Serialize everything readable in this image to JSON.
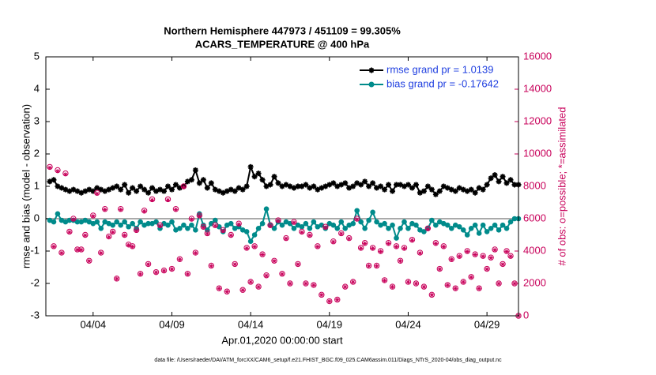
{
  "chart_data": {
    "type": "line",
    "title": "Northern Hemisphere 447973 / 451109 = 99.305%",
    "subtitle": "ACARS_TEMPERATURE @ 400 hPa",
    "xlabel": "Apr.01,2020 00:00:00 start",
    "ylabel": "rmse and bias (model - observation)",
    "y2label": "# of obs: o=possible; *=assimilated",
    "footer": "data file: /Users/raeder/DAI/ATM_forcXX/CAM6_setup/f.e21.FHIST_BGC.f09_025.CAM6assim.011/Diags_NTrS_2020-04/obs_diag_output.nc",
    "xlim": [
      0,
      30
    ],
    "xticks": [
      {
        "value": 3,
        "label": "04/04"
      },
      {
        "value": 8,
        "label": "04/09"
      },
      {
        "value": 13,
        "label": "04/14"
      },
      {
        "value": 18,
        "label": "04/19"
      },
      {
        "value": 23,
        "label": "04/24"
      },
      {
        "value": 28,
        "label": "04/29"
      }
    ],
    "ylim": [
      -3,
      5
    ],
    "yticks": [
      -3,
      -2,
      -1,
      0,
      1,
      2,
      3,
      4,
      5
    ],
    "y2lim": [
      0,
      16000
    ],
    "y2ticks": [
      0,
      2000,
      4000,
      6000,
      8000,
      10000,
      12000,
      14000,
      16000
    ],
    "y2color": "#c8005a",
    "zero_line_color": "#aaaaaa",
    "legend": "upper right",
    "x": [
      0.25,
      0.5,
      0.75,
      1,
      1.25,
      1.5,
      1.75,
      2,
      2.25,
      2.5,
      2.75,
      3,
      3.25,
      3.5,
      3.75,
      4,
      4.25,
      4.5,
      4.75,
      5,
      5.25,
      5.5,
      5.75,
      6,
      6.25,
      6.5,
      6.75,
      7,
      7.25,
      7.5,
      7.75,
      8,
      8.25,
      8.5,
      8.75,
      9,
      9.25,
      9.5,
      9.75,
      10,
      10.25,
      10.5,
      10.75,
      11,
      11.25,
      11.5,
      11.75,
      12,
      12.25,
      12.5,
      12.75,
      13,
      13.25,
      13.5,
      13.75,
      14,
      14.25,
      14.5,
      14.75,
      15,
      15.25,
      15.5,
      15.75,
      16,
      16.25,
      16.5,
      16.75,
      17,
      17.25,
      17.5,
      17.75,
      18,
      18.25,
      18.5,
      18.75,
      19,
      19.25,
      19.5,
      19.75,
      20,
      20.25,
      20.5,
      20.75,
      21,
      21.25,
      21.5,
      21.75,
      22,
      22.25,
      22.5,
      22.75,
      23,
      23.25,
      23.5,
      23.75,
      24,
      24.25,
      24.5,
      24.75,
      25,
      25.25,
      25.5,
      25.75,
      26,
      26.25,
      26.5,
      26.75,
      27,
      27.25,
      27.5,
      27.75,
      28,
      28.25,
      28.5,
      28.75,
      29,
      29.25,
      29.5,
      29.75,
      30
    ],
    "series": [
      {
        "name": "rmse grand pr = 1.0139",
        "color": "#000000",
        "marker": "star-line",
        "values": [
          1.15,
          1.2,
          1.0,
          0.95,
          0.9,
          0.85,
          0.9,
          0.85,
          0.8,
          0.85,
          0.9,
          0.85,
          0.95,
          0.9,
          0.85,
          0.9,
          0.95,
          1.0,
          0.9,
          1.05,
          0.8,
          0.95,
          0.85,
          1.0,
          0.9,
          0.8,
          0.95,
          0.85,
          0.9,
          0.85,
          1.0,
          0.9,
          1.05,
          0.95,
          1.0,
          1.15,
          1.2,
          1.5,
          1.1,
          1.2,
          0.95,
          1.1,
          0.9,
          0.85,
          0.8,
          0.85,
          0.9,
          0.85,
          0.95,
          0.9,
          1.0,
          1.6,
          1.3,
          1.4,
          1.2,
          1.0,
          1.05,
          1.3,
          1.1,
          1.0,
          1.05,
          1.0,
          0.95,
          1.0,
          1.0,
          1.05,
          0.95,
          1.0,
          0.9,
          0.95,
          1.0,
          1.05,
          1.1,
          1.0,
          1.05,
          1.1,
          0.95,
          1.0,
          1.1,
          1.05,
          1.15,
          1.0,
          1.1,
          0.95,
          1.0,
          0.9,
          1.05,
          0.85,
          1.05,
          1.05,
          1.0,
          1.05,
          0.95,
          1.05,
          0.8,
          0.85,
          1.0,
          0.9,
          0.75,
          0.85,
          1.0,
          0.95,
          0.9,
          0.85,
          0.95,
          0.9,
          0.85,
          0.9,
          0.8,
          0.95,
          0.9,
          1.05,
          1.25,
          1.35,
          1.15,
          1.3,
          1.1,
          1.2,
          1.05,
          1.05
        ]
      },
      {
        "name": "bias grand pr = -0.17642",
        "color": "#008b8b",
        "marker": "circle-line",
        "values": [
          -0.05,
          -0.1,
          0.15,
          -0.05,
          -0.1,
          -0.05,
          -0.05,
          -0.1,
          -0.1,
          -0.05,
          -0.1,
          -0.15,
          -0.1,
          -0.3,
          -0.1,
          -0.15,
          -0.2,
          -0.1,
          -0.2,
          -0.1,
          -0.25,
          -0.15,
          -0.3,
          -0.1,
          -0.2,
          -0.15,
          -0.15,
          -0.1,
          -0.3,
          -0.15,
          -0.2,
          -0.1,
          -0.35,
          -0.3,
          -0.2,
          -0.3,
          -0.2,
          -0.35,
          0.15,
          -0.2,
          -0.35,
          -0.15,
          -0.05,
          -0.25,
          -0.4,
          -0.2,
          -0.15,
          -0.3,
          -0.25,
          -0.35,
          -0.4,
          -0.7,
          -0.5,
          -0.3,
          -0.15,
          0.3,
          -0.2,
          -0.3,
          -0.1,
          -0.2,
          -0.1,
          -0.15,
          -0.3,
          -0.2,
          -0.25,
          -0.15,
          -0.3,
          -0.1,
          -0.25,
          -0.2,
          -0.3,
          -0.15,
          -0.2,
          -0.3,
          -0.1,
          -0.3,
          -0.2,
          -0.15,
          0.25,
          -0.1,
          -0.3,
          -0.05,
          0.2,
          -0.1,
          -0.2,
          -0.15,
          -0.3,
          -0.2,
          -0.6,
          -0.3,
          -0.1,
          -0.3,
          -0.15,
          -0.2,
          -0.35,
          -0.4,
          -0.3,
          -0.05,
          -0.2,
          -0.1,
          -0.15,
          -0.2,
          -0.3,
          -0.2,
          -0.25,
          -0.35,
          -0.5,
          -0.3,
          -0.2,
          -0.45,
          -0.2,
          -0.4,
          -0.3,
          -0.2,
          -0.35,
          -0.2,
          -0.3,
          -0.1,
          0.0,
          0.0
        ]
      },
      {
        "color": "#c8005a",
        "axis": "y2",
        "marker": "circle",
        "values": [
          9200,
          4300,
          9000,
          3900,
          8800,
          5200,
          6000,
          4100,
          4100,
          5000,
          3400,
          6200,
          7600,
          3900,
          6600,
          4900,
          5200,
          2300,
          6600,
          5000,
          4400,
          4300,
          5300,
          2600,
          6500,
          3200,
          7200,
          2700,
          5600,
          2800,
          7200,
          2900,
          6600,
          3500,
          8000,
          2600,
          6000,
          3900,
          6200,
          5500,
          5100,
          3100,
          5600,
          1700,
          5300,
          1500,
          5000,
          3200,
          5700,
          1600,
          4200,
          2100,
          4300,
          1800,
          3800,
          2500,
          5600,
          3400,
          5900,
          2600,
          4800,
          2000,
          5800,
          3200,
          5200,
          2000,
          5000,
          1900,
          4300,
          1300,
          5500,
          900,
          4600,
          1000,
          5100,
          1800,
          4800,
          2100,
          6000,
          4200,
          4500,
          3100,
          4200,
          3100,
          4000,
          2200,
          4500,
          1800,
          4300,
          3400,
          4200,
          2100,
          4700,
          2000,
          3900,
          1800,
          5400,
          1300,
          4500,
          2900,
          4300,
          1900,
          3500,
          1700,
          3700,
          2100,
          4000,
          2400,
          3800,
          1700,
          3700,
          2900,
          3600,
          4100,
          2000,
          3200,
          4000,
          3700,
          2000,
          0
        ]
      },
      {
        "color": "#c8005a",
        "axis": "y2",
        "marker": "star",
        "values": [
          9150,
          4270,
          8940,
          3880,
          8740,
          5170,
          5960,
          4080,
          4080,
          4970,
          3380,
          6160,
          7550,
          3880,
          6560,
          4870,
          5170,
          2290,
          6560,
          4970,
          4370,
          4270,
          5260,
          2580,
          6460,
          3180,
          7150,
          2680,
          5560,
          2780,
          7150,
          2880,
          6560,
          3480,
          7950,
          2580,
          5960,
          3880,
          6160,
          5460,
          5070,
          3080,
          5560,
          1690,
          5260,
          1490,
          4970,
          3180,
          5660,
          1590,
          4170,
          2090,
          4270,
          1790,
          3780,
          2480,
          5560,
          3380,
          5860,
          2580,
          4770,
          1990,
          5760,
          3180,
          5160,
          1990,
          4970,
          1890,
          4270,
          1290,
          5460,
          890,
          4570,
          990,
          5070,
          1790,
          4770,
          2090,
          5960,
          4170,
          4470,
          3080,
          4170,
          3080,
          3970,
          2180,
          4470,
          1790,
          4270,
          3380,
          4170,
          2090,
          4670,
          1990,
          3870,
          1790,
          5360,
          1290,
          4470,
          2880,
          4270,
          1890,
          3480,
          1690,
          3670,
          2090,
          3970,
          2380,
          3780,
          1690,
          3670,
          2880,
          3580,
          4070,
          1990,
          3180,
          3970,
          3670,
          1990,
          0
        ]
      }
    ]
  }
}
